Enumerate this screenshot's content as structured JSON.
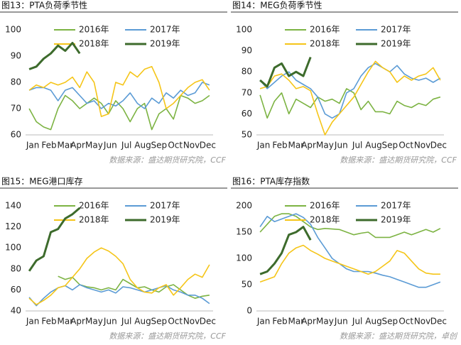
{
  "chart_data": [
    {
      "type": "line",
      "title": "图13：PTA负荷季节性",
      "source": "数据来源：盛达期货研究院，CCF",
      "x": [
        1,
        3,
        5,
        7,
        9,
        11,
        13,
        15,
        17,
        19,
        21,
        23,
        25,
        27,
        29,
        31,
        33,
        35,
        37,
        39,
        41,
        43,
        45,
        47,
        49,
        51
      ],
      "xlim": [
        0,
        52
      ],
      "xticks": [
        {
          "value": 2,
          "label": "Jan"
        },
        {
          "value": 6.5,
          "label": "Feb"
        },
        {
          "value": 11,
          "label": "Mar"
        },
        {
          "value": 14.5,
          "label": "Apr"
        },
        {
          "value": 19,
          "label": "May"
        },
        {
          "value": 23.5,
          "label": "Jun"
        },
        {
          "value": 28,
          "label": "Jul"
        },
        {
          "value": 32.5,
          "label": "Aug"
        },
        {
          "value": 37,
          "label": "Sep"
        },
        {
          "value": 41.5,
          "label": "Oct"
        },
        {
          "value": 46,
          "label": "Nov"
        },
        {
          "value": 50.5,
          "label": "Dec"
        }
      ],
      "ylim": [
        60,
        100
      ],
      "yticks": [
        60,
        70,
        80,
        90,
        100
      ],
      "series": [
        {
          "name": "2016年",
          "color": "#7cb342",
          "values": [
            70,
            65,
            63,
            62,
            70,
            75,
            73,
            70,
            72,
            74,
            72,
            68,
            73,
            70,
            65,
            70,
            72,
            62,
            68,
            70,
            66,
            75,
            74,
            72,
            73,
            75
          ]
        },
        {
          "name": "2017年",
          "color": "#5b9bd5",
          "values": [
            77,
            78,
            78,
            77,
            73,
            77,
            78,
            75,
            72,
            73,
            70,
            72,
            71,
            73,
            76,
            72,
            70,
            74,
            72,
            76,
            74,
            77,
            75,
            76,
            80,
            79
          ]
        },
        {
          "name": "2018年",
          "color": "#f5c518",
          "values": [
            77,
            79,
            78,
            80,
            79,
            80,
            82,
            78,
            84,
            80,
            67,
            68,
            80,
            79,
            84,
            82,
            85,
            86,
            80,
            70,
            72,
            75,
            78,
            80,
            81,
            77
          ]
        },
        {
          "name": "2019年",
          "color": "#3d6b2c",
          "values": [
            85,
            86,
            89,
            91,
            94,
            92,
            95,
            91,
            null,
            null,
            null,
            null,
            null,
            null,
            null,
            null,
            null,
            null,
            null,
            null,
            null,
            null,
            null,
            null,
            null,
            null
          ]
        }
      ]
    },
    {
      "type": "line",
      "title": "图14：MEG负荷季节性",
      "source": "数据来源：盛达期货研究院，CCF",
      "x": [
        1,
        3,
        5,
        7,
        9,
        11,
        13,
        15,
        17,
        19,
        21,
        23,
        25,
        27,
        29,
        31,
        33,
        35,
        37,
        39,
        41,
        43,
        45,
        47,
        49,
        51
      ],
      "xlim": [
        0,
        52
      ],
      "xticks": [
        {
          "value": 2,
          "label": "Jan"
        },
        {
          "value": 6.5,
          "label": "Feb"
        },
        {
          "value": 11,
          "label": "Mar"
        },
        {
          "value": 14.5,
          "label": "Apr"
        },
        {
          "value": 19,
          "label": "May"
        },
        {
          "value": 23.5,
          "label": "Jun"
        },
        {
          "value": 28,
          "label": "Jul"
        },
        {
          "value": 32.5,
          "label": "Aug"
        },
        {
          "value": 37,
          "label": "Sep"
        },
        {
          "value": 41.5,
          "label": "Oct"
        },
        {
          "value": 46,
          "label": "Nov"
        },
        {
          "value": 50.5,
          "label": "Dec"
        }
      ],
      "ylim": [
        50,
        100
      ],
      "yticks": [
        50,
        60,
        70,
        80,
        90,
        100
      ],
      "series": [
        {
          "name": "2016年",
          "color": "#7cb342",
          "values": [
            69,
            58,
            66,
            70,
            60,
            67,
            65,
            63,
            68,
            66,
            67,
            65,
            72,
            70,
            62,
            66,
            61,
            61,
            60,
            66,
            64,
            63,
            65,
            64,
            67,
            68
          ]
        },
        {
          "name": "2017年",
          "color": "#5b9bd5",
          "values": [
            76,
            72,
            75,
            78,
            80,
            76,
            74,
            72,
            68,
            60,
            58,
            60,
            70,
            72,
            78,
            82,
            84,
            82,
            80,
            83,
            79,
            77,
            76,
            77,
            75,
            77
          ]
        },
        {
          "name": "2018年",
          "color": "#f5c518",
          "values": [
            72,
            73,
            78,
            79,
            76,
            72,
            73,
            71,
            60,
            50,
            56,
            60,
            64,
            68,
            74,
            80,
            85,
            82,
            80,
            75,
            78,
            76,
            78,
            79,
            82,
            76
          ]
        },
        {
          "name": "2019年",
          "color": "#3d6b2c",
          "values": [
            76,
            73,
            82,
            84,
            78,
            80,
            78,
            87,
            null,
            null,
            null,
            null,
            null,
            null,
            null,
            null,
            null,
            null,
            null,
            null,
            null,
            null,
            null,
            null,
            null,
            null
          ]
        }
      ]
    },
    {
      "type": "line",
      "title": "图15：MEG港口库存",
      "source": "数据来源：盛达期货研究院，CCF",
      "x": [
        1,
        3,
        5,
        7,
        9,
        11,
        13,
        15,
        17,
        19,
        21,
        23,
        25,
        27,
        29,
        31,
        33,
        35,
        37,
        39,
        41,
        43,
        45,
        47,
        49,
        51
      ],
      "xlim": [
        0,
        52
      ],
      "xticks": [
        {
          "value": 2,
          "label": "Jan"
        },
        {
          "value": 6.5,
          "label": "Feb"
        },
        {
          "value": 11,
          "label": "Mar"
        },
        {
          "value": 14.5,
          "label": "Apr"
        },
        {
          "value": 19,
          "label": "May"
        },
        {
          "value": 23.5,
          "label": "Jun"
        },
        {
          "value": 28,
          "label": "Jul"
        },
        {
          "value": 32.5,
          "label": "Aug"
        },
        {
          "value": 37,
          "label": "Sep"
        },
        {
          "value": 41.5,
          "label": "Oct"
        },
        {
          "value": 46,
          "label": "Nov"
        },
        {
          "value": 50.5,
          "label": "Dec"
        }
      ],
      "ylim": [
        40,
        140
      ],
      "yticks": [
        40,
        60,
        80,
        100,
        120,
        140
      ],
      "series": [
        {
          "name": "2016年",
          "color": "#7cb342",
          "values": [
            null,
            null,
            null,
            null,
            73,
            70,
            72,
            65,
            63,
            62,
            60,
            62,
            60,
            70,
            66,
            62,
            63,
            60,
            58,
            63,
            65,
            60,
            55,
            52,
            54,
            55
          ]
        },
        {
          "name": "2017年",
          "color": "#5b9bd5",
          "values": [
            53,
            45,
            52,
            58,
            62,
            64,
            60,
            65,
            62,
            60,
            58,
            60,
            57,
            63,
            62,
            60,
            58,
            60,
            62,
            64,
            60,
            58,
            55,
            55,
            52,
            47
          ]
        },
        {
          "name": "2018年",
          "color": "#f5c518",
          "values": [
            52,
            46,
            50,
            55,
            62,
            64,
            72,
            80,
            90,
            96,
            100,
            97,
            92,
            85,
            70,
            62,
            58,
            57,
            62,
            65,
            55,
            62,
            70,
            75,
            72,
            84
          ]
        },
        {
          "name": "2019年",
          "color": "#3d6b2c",
          "values": [
            78,
            88,
            92,
            115,
            118,
            128,
            132,
            138,
            null,
            null,
            null,
            null,
            null,
            null,
            null,
            null,
            null,
            null,
            null,
            null,
            null,
            null,
            null,
            null,
            null,
            null
          ]
        }
      ]
    },
    {
      "type": "line",
      "title": "图16：PTA库存指数",
      "source": "数据来源：盛达期货研究院，卓创",
      "x": [
        1,
        3,
        5,
        7,
        9,
        11,
        13,
        15,
        17,
        19,
        21,
        23,
        25,
        27,
        29,
        31,
        33,
        35,
        37,
        39,
        41,
        43,
        45,
        47,
        49,
        51
      ],
      "xlim": [
        0,
        52
      ],
      "xticks": [
        {
          "value": 2,
          "label": "Jan"
        },
        {
          "value": 6.5,
          "label": "Feb"
        },
        {
          "value": 11,
          "label": "Mar"
        },
        {
          "value": 14.5,
          "label": "Apr"
        },
        {
          "value": 19,
          "label": "May"
        },
        {
          "value": 23.5,
          "label": "Jun"
        },
        {
          "value": 28,
          "label": "Jul"
        },
        {
          "value": 32.5,
          "label": "Aug"
        },
        {
          "value": 37,
          "label": "Sep"
        },
        {
          "value": 41.5,
          "label": "Oct"
        },
        {
          "value": 46,
          "label": "Nov"
        },
        {
          "value": 50.5,
          "label": "Dec"
        }
      ],
      "ylim": [
        0,
        200
      ],
      "yticks": [
        0,
        50,
        100,
        150,
        200
      ],
      "series": [
        {
          "name": "2016年",
          "color": "#7cb342",
          "values": [
            150,
            165,
            180,
            185,
            185,
            180,
            170,
            160,
            155,
            157,
            156,
            155,
            150,
            145,
            148,
            150,
            140,
            140,
            140,
            145,
            150,
            145,
            150,
            155,
            150,
            157
          ]
        },
        {
          "name": "2017年",
          "color": "#5b9bd5",
          "values": [
            160,
            180,
            170,
            175,
            180,
            185,
            178,
            165,
            140,
            120,
            100,
            90,
            80,
            75,
            75,
            75,
            72,
            68,
            65,
            60,
            55,
            50,
            45,
            45,
            50,
            55
          ]
        },
        {
          "name": "2018年",
          "color": "#f5c518",
          "values": [
            55,
            60,
            65,
            90,
            110,
            120,
            125,
            115,
            108,
            100,
            95,
            90,
            85,
            80,
            75,
            70,
            75,
            85,
            95,
            115,
            110,
            95,
            80,
            72,
            70,
            70
          ]
        },
        {
          "name": "2019年",
          "color": "#3d6b2c",
          "values": [
            70,
            75,
            90,
            110,
            145,
            150,
            160,
            135,
            null,
            null,
            null,
            null,
            null,
            null,
            null,
            null,
            null,
            null,
            null,
            null,
            null,
            null,
            null,
            null,
            null,
            null
          ]
        }
      ]
    }
  ]
}
